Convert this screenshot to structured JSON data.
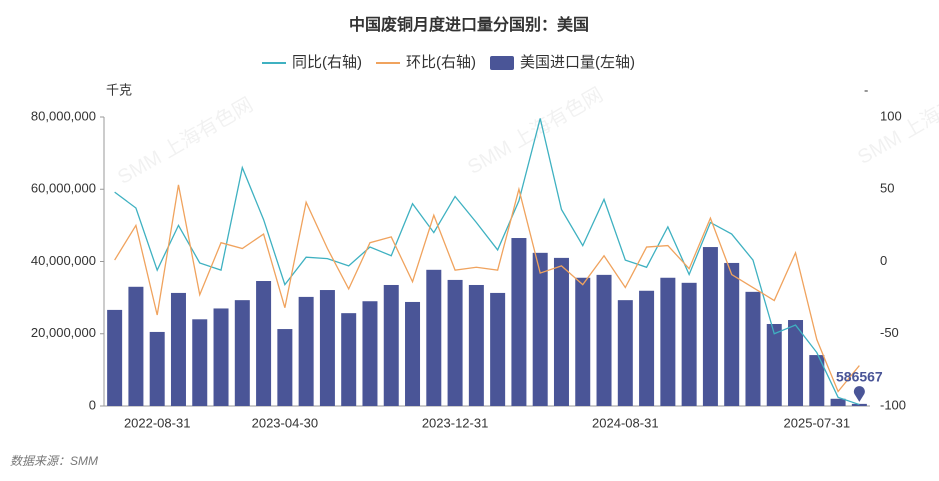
{
  "chart_data": {
    "type": "bar_line",
    "title": "中国废铜月度进口量分国别：美国",
    "y_unit": "千克",
    "y2_unit": "-",
    "source": "数据来源：SMM",
    "watermark": "SMM 上海有色网",
    "categories": [
      null,
      null,
      "2022-08-31",
      null,
      null,
      null,
      null,
      null,
      "2023-04-30",
      null,
      null,
      null,
      null,
      null,
      null,
      null,
      "2023-12-31",
      null,
      null,
      null,
      null,
      null,
      null,
      null,
      "2024-08-31",
      null,
      null,
      null,
      null,
      null,
      null,
      null,
      null,
      "2025-07-31",
      null,
      null
    ],
    "series": [
      {
        "name": "同比(右轴)",
        "type": "line",
        "axis": "y2",
        "color": "#3fb1c1",
        "values": [
          48,
          37,
          -6,
          25,
          -1,
          -6,
          65,
          29,
          -16,
          3,
          2,
          -3,
          10,
          4,
          40,
          20,
          45,
          27,
          8,
          42,
          99,
          36,
          11,
          43,
          1,
          -4,
          24,
          -9,
          27,
          19,
          1,
          -50,
          -44,
          -63,
          -94,
          -99
        ]
      },
      {
        "name": "环比(右轴)",
        "type": "line",
        "axis": "y2",
        "color": "#f0a35e",
        "values": [
          1,
          25,
          -37,
          53,
          -23,
          13,
          9,
          19,
          -32,
          41,
          9,
          -19,
          13,
          17,
          -14,
          32,
          -6,
          -4,
          -6,
          50,
          -8,
          -3,
          -16,
          4,
          -18,
          10,
          11,
          -5,
          30,
          -9,
          -18,
          -27,
          6,
          -54,
          -90,
          -72
        ]
      },
      {
        "name": "美国进口量(左轴)",
        "type": "bar",
        "axis": "y",
        "color": "#4a5597",
        "values": [
          26600000,
          33000000,
          20500000,
          31300000,
          24000000,
          27000000,
          29300000,
          34600000,
          21300000,
          30200000,
          32100000,
          25700000,
          29000000,
          33500000,
          28800000,
          37700000,
          34900000,
          33500000,
          31300000,
          46500000,
          42400000,
          41000000,
          35500000,
          36300000,
          29300000,
          31900000,
          35500000,
          34100000,
          44000000,
          39600000,
          31600000,
          22700000,
          23800000,
          14100000,
          2000000,
          586567
        ]
      }
    ],
    "labeled_point": 35,
    "ylim": [
      0,
      80000000
    ],
    "yticks": [
      0,
      {
        "value": 20000000,
        "label": "20,000,000"
      },
      {
        "value": 40000000,
        "label": "40,000,000"
      },
      {
        "value": 60000000,
        "label": "60,000,000"
      },
      {
        "value": 80000000,
        "label": "80,000,000"
      }
    ],
    "y2lim": [
      -100,
      100
    ],
    "y2ticks": [
      -100,
      -50,
      0,
      50,
      100
    ]
  }
}
